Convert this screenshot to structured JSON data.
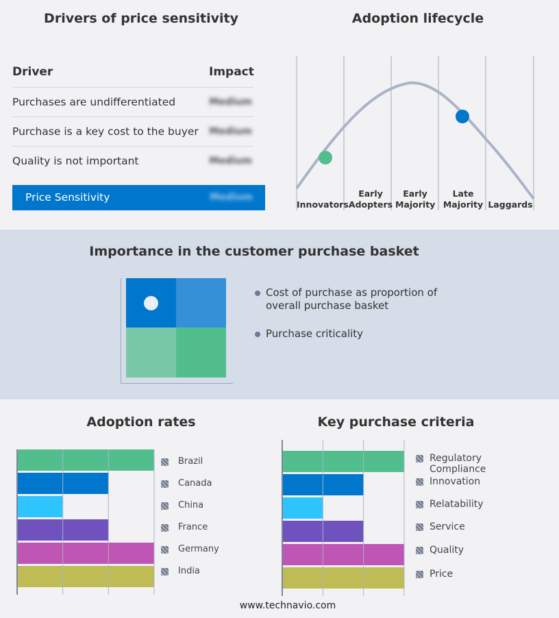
{
  "drivers": {
    "title": "Drivers of price sensitivity",
    "header_driver": "Driver",
    "header_impact": "Impact",
    "rows": [
      {
        "driver": "Purchases are undifferentiated",
        "impact": "Medium"
      },
      {
        "driver": "Purchase is a key cost to the buyer",
        "impact": "Medium"
      },
      {
        "driver": "Quality is not important",
        "impact": "Medium"
      }
    ],
    "summary": {
      "label": "Price Sensitivity",
      "impact": "Medium"
    },
    "accent": "#0077cc"
  },
  "lifecycle": {
    "title": "Adoption lifecycle",
    "stages": [
      "Innovators",
      "Early Adopters",
      "Early Majority",
      "Late Majority",
      "Laggards"
    ],
    "markers": [
      {
        "stage": "Innovators",
        "color": "#52be8e"
      },
      {
        "stage": "Late Majority",
        "color": "#0077cc"
      }
    ]
  },
  "basket": {
    "title": "Importance in the customer purchase basket",
    "legend": [
      "Cost of purchase as proportion of overall purchase basket",
      "Purchase criticality"
    ],
    "highlighted_quadrant": "top-left"
  },
  "footer": {
    "site": "www.technavio.com"
  },
  "chart_data": [
    {
      "type": "bar",
      "orientation": "horizontal",
      "title": "Adoption rates",
      "categories": [
        "Brazil",
        "Canada",
        "China",
        "France",
        "Germany",
        "India"
      ],
      "values": [
        3,
        2,
        1,
        2,
        3,
        3
      ],
      "xlim": [
        0,
        3
      ],
      "grid": true,
      "legend": "right",
      "colors": [
        "#52be8e",
        "#0077cc",
        "#2ec4ff",
        "#6f52bd",
        "#bf55b5",
        "#bfbb55"
      ]
    },
    {
      "type": "bar",
      "orientation": "horizontal",
      "title": "Key purchase criteria",
      "categories": [
        "Regulatory Compliance",
        "Innovation",
        "Relatability",
        "Service",
        "Quality",
        "Price"
      ],
      "values": [
        3,
        2,
        1,
        2,
        3,
        3
      ],
      "xlim": [
        0,
        3
      ],
      "grid": true,
      "legend": "right",
      "colors": [
        "#52be8e",
        "#0077cc",
        "#2ec4ff",
        "#6f52bd",
        "#bf55b5",
        "#bfbb55"
      ]
    }
  ]
}
